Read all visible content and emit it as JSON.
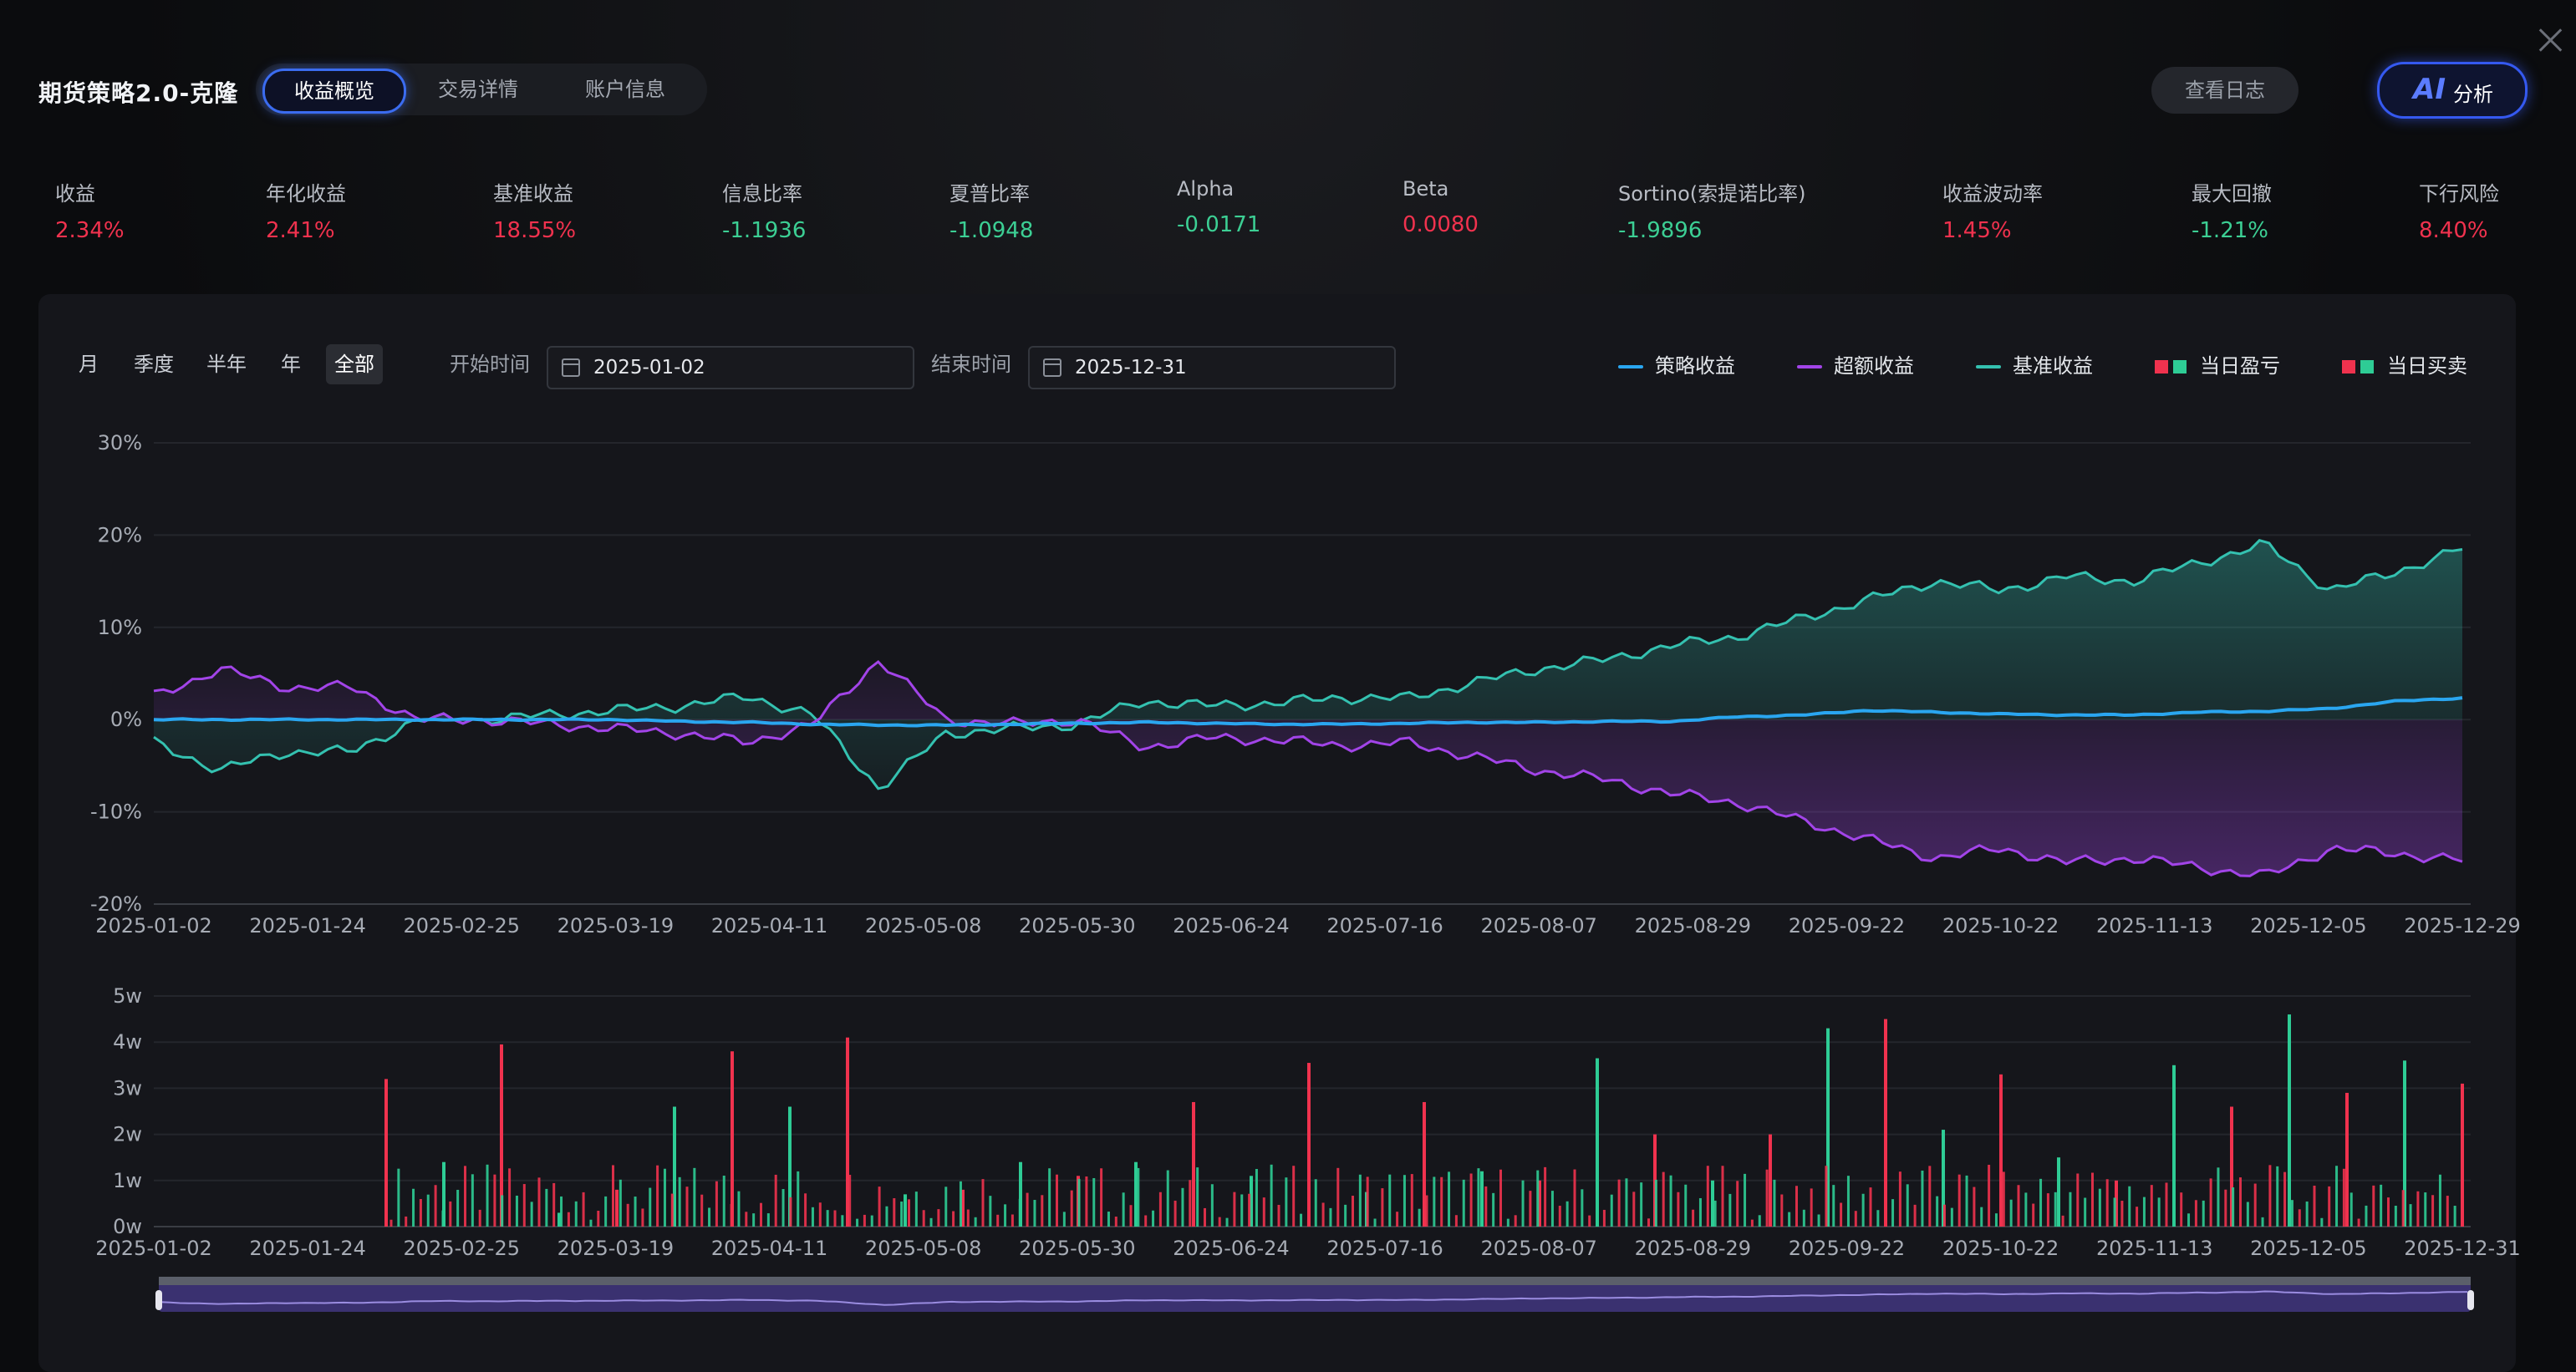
{
  "header": {
    "title": "期货策略2.0-克隆",
    "tabs": [
      "收益概览",
      "交易详情",
      "账户信息"
    ],
    "active_tab": 0,
    "log_button": "查看日志",
    "ai_button": {
      "badge": "AI",
      "label": "分析"
    }
  },
  "metrics": [
    {
      "label": "收益",
      "value": "2.34%",
      "tone": "red"
    },
    {
      "label": "年化收益",
      "value": "2.41%",
      "tone": "red"
    },
    {
      "label": "基准收益",
      "value": "18.55%",
      "tone": "red"
    },
    {
      "label": "信息比率",
      "value": "-1.1936",
      "tone": "green"
    },
    {
      "label": "夏普比率",
      "value": "-1.0948",
      "tone": "green"
    },
    {
      "label": "Alpha",
      "value": "-0.0171",
      "tone": "green"
    },
    {
      "label": "Beta",
      "value": "0.0080",
      "tone": "red"
    },
    {
      "label": "Sortino(索提诺比率)",
      "value": "-1.9896",
      "tone": "green"
    },
    {
      "label": "收益波动率",
      "value": "1.45%",
      "tone": "red"
    },
    {
      "label": "最大回撤",
      "value": "-1.21%",
      "tone": "green"
    },
    {
      "label": "下行风险",
      "value": "8.40%",
      "tone": "red"
    }
  ],
  "toolbar": {
    "periods": [
      "月",
      "季度",
      "半年",
      "年",
      "全部"
    ],
    "active_period": 4,
    "start_label": "开始时间",
    "start_value": "2025-01-02",
    "end_label": "结束时间",
    "end_value": "2025-12-31"
  },
  "legend": {
    "strategy": "策略收益",
    "excess": "超额收益",
    "benchmark": "基准收益",
    "daily_pnl": "当日盈亏",
    "daily_trade": "当日买卖"
  },
  "colors": {
    "strategy": "#2aa6f0",
    "excess": "#a244e8",
    "benchmark": "#34c1b0",
    "up": "#f0324e",
    "down": "#2ecc95",
    "accent": "#3b6cf0"
  },
  "chart_data": [
    {
      "type": "line",
      "x_tick_labels": [
        "2025-01-02",
        "2025-01-24",
        "2025-02-25",
        "2025-03-19",
        "2025-04-11",
        "2025-05-08",
        "2025-05-30",
        "2025-06-24",
        "2025-07-16",
        "2025-08-07",
        "2025-08-29",
        "2025-09-22",
        "2025-10-22",
        "2025-11-13",
        "2025-12-05",
        "2025-12-29"
      ],
      "y_tick_labels": [
        "30%",
        "20%",
        "10%",
        "0%",
        "-10%",
        "-20%"
      ],
      "ylim": [
        -20,
        30
      ],
      "grid": true,
      "legend_position": "top-right",
      "series": [
        {
          "name": "策略收益",
          "values": [
            0,
            0,
            0,
            0,
            0,
            0,
            0,
            0,
            -0.2,
            -0.3,
            -0.5,
            -0.6,
            -0.6,
            -0.5,
            -0.4,
            -0.3,
            -0.4,
            -0.5,
            -0.5,
            -0.4,
            -0.3,
            -0.3,
            -0.2,
            -0.2,
            0.3,
            0.5,
            1.0,
            0.8,
            0.6,
            0.5,
            0.5,
            0.8,
            0.9,
            1.2,
            2.0,
            2.34
          ]
        },
        {
          "name": "超额收益",
          "values": [
            2.5,
            5.5,
            3.5,
            3.5,
            0,
            0,
            -0.5,
            -1,
            -1.5,
            -2.5,
            -0.5,
            6.5,
            0,
            -0.5,
            0,
            -3,
            -2,
            -2.2,
            -2.8,
            -2.5,
            -4,
            -5.5,
            -6.5,
            -8,
            -9,
            -11,
            -13,
            -15,
            -14,
            -15.5,
            -15,
            -16,
            -17,
            -14,
            -14.5,
            -15.3
          ]
        },
        {
          "name": "基准收益",
          "values": [
            -2.5,
            -5.5,
            -3.5,
            -3.5,
            0,
            0,
            0.5,
            1,
            1.5,
            2.5,
            0.5,
            -7.5,
            -1.5,
            -1,
            -0.5,
            2,
            1.5,
            1.8,
            2.4,
            2.3,
            4,
            5.5,
            6.5,
            8,
            9,
            11,
            13,
            15,
            14,
            15.5,
            15,
            17,
            19,
            14,
            16,
            18.55
          ]
        }
      ]
    },
    {
      "type": "bar",
      "y_tick_labels": [
        "5w",
        "4w",
        "3w",
        "2w",
        "1w",
        "0w"
      ],
      "ylim": [
        0,
        50000
      ],
      "x_tick_labels": [
        "2025-01-02",
        "2025-01-24",
        "2025-02-25",
        "2025-03-19",
        "2025-04-11",
        "2025-05-08",
        "2025-05-30",
        "2025-06-24",
        "2025-07-16",
        "2025-08-07",
        "2025-08-29",
        "2025-09-22",
        "2025-10-22",
        "2025-11-13",
        "2025-12-05",
        "2025-12-31"
      ],
      "series": [
        {
          "name": "当日买卖",
          "values": [
            32000,
            14000,
            39500,
            3000,
            8000,
            26000,
            38000,
            26000,
            41000,
            7000,
            8000,
            14000,
            11000,
            14000,
            27000,
            11000,
            35500,
            7500,
            27000,
            12000,
            10000,
            36500,
            20000,
            10000,
            20000,
            43000,
            45000,
            21000,
            33000,
            15000,
            10000,
            35000,
            26000,
            46000,
            29000,
            36000,
            31000
          ]
        }
      ]
    }
  ],
  "x_axis_bottom_last": "2025-12-31"
}
